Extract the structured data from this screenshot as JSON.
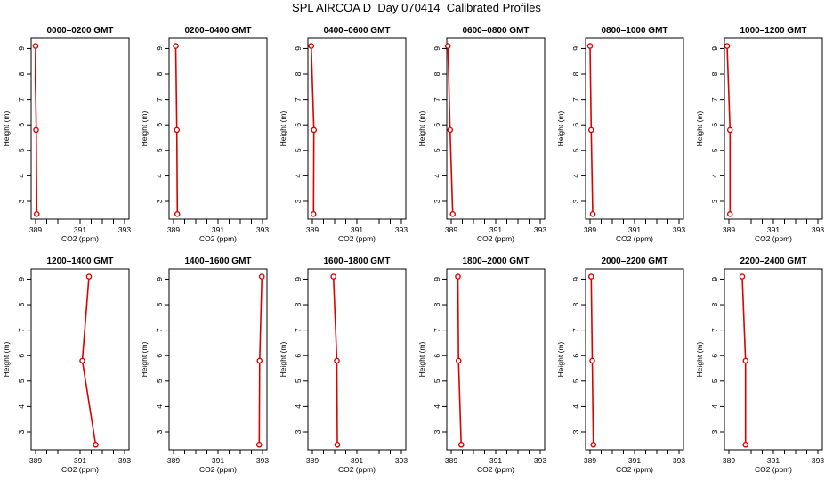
{
  "title": "SPL AIRCOA D  Day 070414  Calibrated Profiles",
  "colors": {
    "profile_line": "#dd0000",
    "profile_marker": "#dd0000",
    "axes": "#000000"
  },
  "chart_data": [
    {
      "type": "line",
      "title": "0000–0200 GMT",
      "xlabel": "CO2 (ppm)",
      "ylabel": "Height (m)",
      "xlim": [
        388.8,
        393.2
      ],
      "ylim": [
        2.3,
        9.4
      ],
      "xticks": [
        389,
        391,
        393
      ],
      "yticks": [
        3,
        4,
        5,
        6,
        7,
        8,
        9
      ],
      "grid": false,
      "series": [
        {
          "x": [
            389.0,
            389.02,
            389.05
          ],
          "y": [
            9.1,
            5.8,
            2.5
          ],
          "line_x": [
            389.0,
            388.99,
            389.02,
            389.03,
            389.05
          ],
          "line_y": [
            9.1,
            7.8,
            6.4,
            5.8,
            2.5
          ]
        }
      ]
    },
    {
      "type": "line",
      "title": "0200–0400 GMT",
      "xlabel": "CO2 (ppm)",
      "ylabel": "Height (m)",
      "xlim": [
        388.8,
        393.2
      ],
      "ylim": [
        2.3,
        9.4
      ],
      "xticks": [
        389,
        391,
        393
      ],
      "yticks": [
        3,
        4,
        5,
        6,
        7,
        8,
        9
      ],
      "grid": false,
      "series": [
        {
          "x": [
            389.1,
            389.15,
            389.17
          ],
          "y": [
            9.1,
            5.8,
            2.5
          ]
        }
      ]
    },
    {
      "type": "line",
      "title": "0400–0600 GMT",
      "xlabel": "CO2 (ppm)",
      "ylabel": "Height (m)",
      "xlim": [
        388.8,
        393.2
      ],
      "ylim": [
        2.3,
        9.4
      ],
      "xticks": [
        389,
        391,
        393
      ],
      "yticks": [
        3,
        4,
        5,
        6,
        7,
        8,
        9
      ],
      "grid": false,
      "series": [
        {
          "x": [
            388.95,
            389.07,
            389.05
          ],
          "y": [
            9.1,
            5.8,
            2.5
          ]
        }
      ]
    },
    {
      "type": "line",
      "title": "0600–0800 GMT",
      "xlabel": "CO2 (ppm)",
      "ylabel": "Height (m)",
      "xlim": [
        388.8,
        393.2
      ],
      "ylim": [
        2.3,
        9.4
      ],
      "xticks": [
        389,
        391,
        393
      ],
      "yticks": [
        3,
        4,
        5,
        6,
        7,
        8,
        9
      ],
      "grid": false,
      "series": [
        {
          "x": [
            388.85,
            388.95,
            389.07
          ],
          "y": [
            9.1,
            5.8,
            2.5
          ]
        }
      ]
    },
    {
      "type": "line",
      "title": "0800–1000 GMT",
      "xlabel": "CO2 (ppm)",
      "ylabel": "Height (m)",
      "xlim": [
        388.8,
        393.2
      ],
      "ylim": [
        2.3,
        9.4
      ],
      "xticks": [
        389,
        391,
        393
      ],
      "yticks": [
        3,
        4,
        5,
        6,
        7,
        8,
        9
      ],
      "grid": false,
      "series": [
        {
          "x": [
            389.0,
            389.05,
            389.12
          ],
          "y": [
            9.1,
            5.8,
            2.5
          ]
        }
      ]
    },
    {
      "type": "line",
      "title": "1000–1200 GMT",
      "xlabel": "CO2 (ppm)",
      "ylabel": "Height (m)",
      "xlim": [
        388.8,
        393.2
      ],
      "ylim": [
        2.3,
        9.4
      ],
      "xticks": [
        389,
        391,
        393
      ],
      "yticks": [
        3,
        4,
        5,
        6,
        7,
        8,
        9
      ],
      "grid": false,
      "series": [
        {
          "x": [
            388.92,
            389.05,
            389.05
          ],
          "y": [
            9.1,
            5.8,
            2.5
          ]
        }
      ]
    },
    {
      "type": "line",
      "title": "1200–1400 GMT",
      "xlabel": "CO2 (ppm)",
      "ylabel": "Height (m)",
      "xlim": [
        388.8,
        393.2
      ],
      "ylim": [
        2.3,
        9.4
      ],
      "xticks": [
        389,
        391,
        393
      ],
      "yticks": [
        3,
        4,
        5,
        6,
        7,
        8,
        9
      ],
      "grid": false,
      "series": [
        {
          "x": [
            391.4,
            391.1,
            391.7
          ],
          "y": [
            9.1,
            5.8,
            2.5
          ]
        }
      ]
    },
    {
      "type": "line",
      "title": "1400–1600 GMT",
      "xlabel": "CO2 (ppm)",
      "ylabel": "Height (m)",
      "xlim": [
        388.8,
        393.2
      ],
      "ylim": [
        2.3,
        9.4
      ],
      "xticks": [
        389,
        391,
        393
      ],
      "yticks": [
        3,
        4,
        5,
        6,
        7,
        8,
        9
      ],
      "grid": false,
      "series": [
        {
          "x": [
            392.97,
            392.87,
            392.85
          ],
          "y": [
            9.1,
            5.8,
            2.5
          ]
        }
      ]
    },
    {
      "type": "line",
      "title": "1600–1800 GMT",
      "xlabel": "CO2 (ppm)",
      "ylabel": "Height (m)",
      "xlim": [
        388.8,
        393.2
      ],
      "ylim": [
        2.3,
        9.4
      ],
      "xticks": [
        389,
        391,
        393
      ],
      "yticks": [
        3,
        4,
        5,
        6,
        7,
        8,
        9
      ],
      "grid": false,
      "series": [
        {
          "x": [
            389.95,
            390.1,
            390.12
          ],
          "y": [
            9.1,
            5.8,
            2.5
          ]
        }
      ]
    },
    {
      "type": "line",
      "title": "1800–2000 GMT",
      "xlabel": "CO2 (ppm)",
      "ylabel": "Height (m)",
      "xlim": [
        388.8,
        393.2
      ],
      "ylim": [
        2.3,
        9.4
      ],
      "xticks": [
        389,
        391,
        393
      ],
      "yticks": [
        3,
        4,
        5,
        6,
        7,
        8,
        9
      ],
      "grid": false,
      "series": [
        {
          "x": [
            389.3,
            389.33,
            389.45
          ],
          "y": [
            9.1,
            5.8,
            2.5
          ]
        }
      ]
    },
    {
      "type": "line",
      "title": "2000–2200 GMT",
      "xlabel": "CO2 (ppm)",
      "ylabel": "Height (m)",
      "xlim": [
        388.8,
        393.2
      ],
      "ylim": [
        2.3,
        9.4
      ],
      "xticks": [
        389,
        391,
        393
      ],
      "yticks": [
        3,
        4,
        5,
        6,
        7,
        8,
        9
      ],
      "grid": false,
      "series": [
        {
          "x": [
            389.05,
            389.1,
            389.15
          ],
          "y": [
            9.1,
            5.8,
            2.5
          ]
        }
      ]
    },
    {
      "type": "line",
      "title": "2200–2400 GMT",
      "xlabel": "CO2 (ppm)",
      "ylabel": "Height (m)",
      "xlim": [
        388.8,
        393.2
      ],
      "ylim": [
        2.3,
        9.4
      ],
      "xticks": [
        389,
        391,
        393
      ],
      "yticks": [
        3,
        4,
        5,
        6,
        7,
        8,
        9
      ],
      "grid": false,
      "series": [
        {
          "x": [
            389.6,
            389.75,
            389.75
          ],
          "y": [
            9.1,
            5.8,
            2.5
          ]
        }
      ]
    }
  ]
}
